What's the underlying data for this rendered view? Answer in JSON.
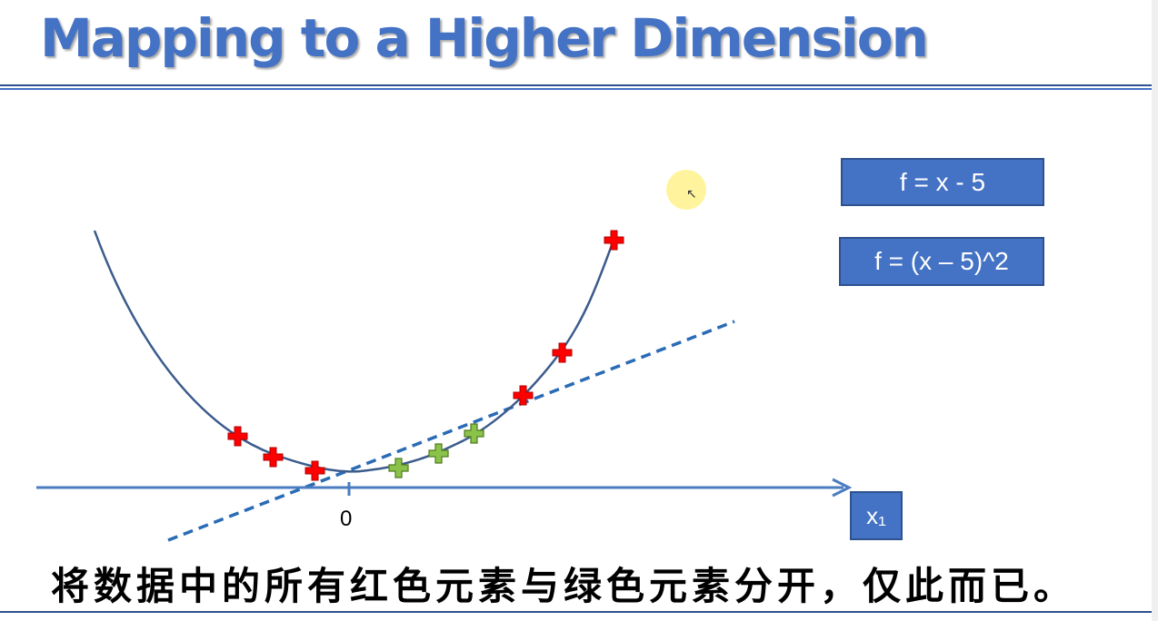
{
  "slide": {
    "title": "Mapping to a Higher Dimension",
    "subtitle": "将数据中的所有红色元素与绿色元素分开，仅此而已。"
  },
  "formulas": [
    {
      "label": "f = x - 5"
    },
    {
      "label": "f = (x – 5)^2"
    }
  ],
  "axis": {
    "x_label": "x₁",
    "origin_label": "0"
  },
  "colors": {
    "title": "#4472c4",
    "box_fill": "#4472c4",
    "curve": "#3b5b8c",
    "axis": "#4a7cc0",
    "dashed_line": "#2a6bb5",
    "red_points": "#ff0000",
    "green_points": "#8bc34a"
  },
  "legend_icons": {
    "red_marker": "plus-icon",
    "green_marker": "plus-icon"
  }
}
